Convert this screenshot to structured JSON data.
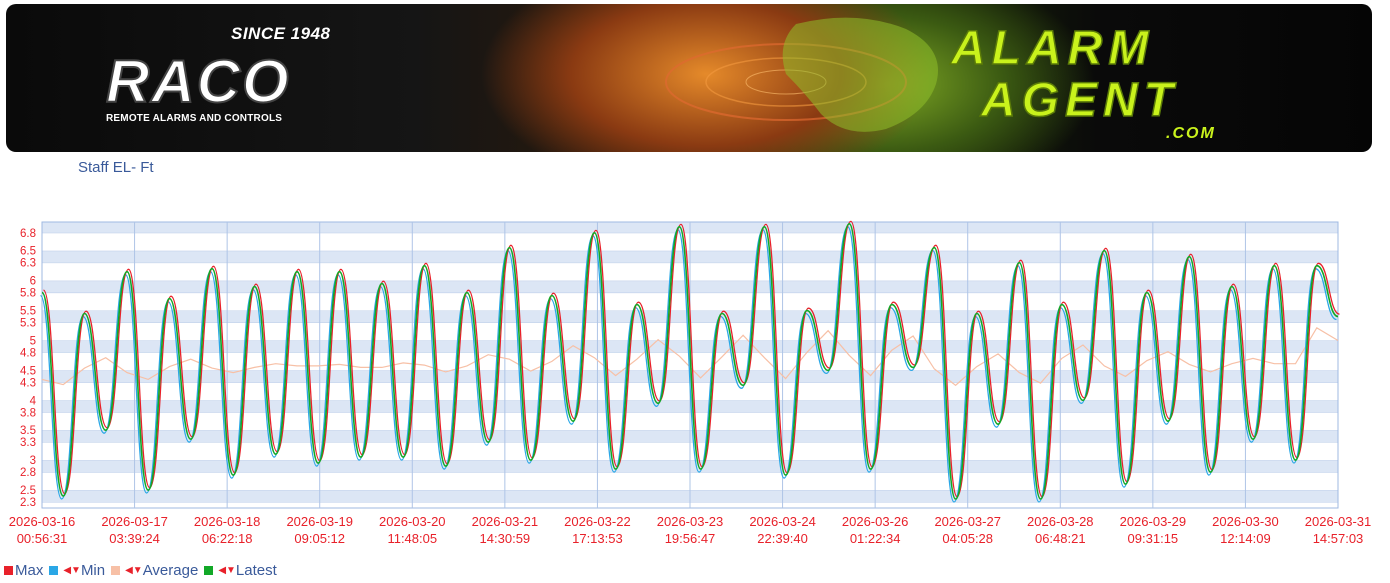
{
  "banner": {
    "since_text": "SINCE 1948",
    "brand_name": "RACO",
    "brand_tagline": "REMOTE ALARMS AND CONTROLS",
    "product_line1": "ALARM",
    "product_line2": "AGENT",
    "product_suffix": ".COM"
  },
  "subtitle": "Staff EL- Ft",
  "legend": {
    "items": [
      {
        "label": "Max",
        "color": "#e8212a",
        "arrows": false
      },
      {
        "label": "Min",
        "color": "#2aa7e6",
        "arrows": true
      },
      {
        "label": "Average",
        "color": "#f7c0a6",
        "arrows": true
      },
      {
        "label": "Latest",
        "color": "#12a827",
        "arrows": true
      }
    ]
  },
  "chart_data": {
    "type": "line",
    "title": "Staff EL- Ft",
    "grid": true,
    "legend_position": "bottom-left",
    "ylim": [
      2.2,
      6.98
    ],
    "y_ticks": [
      "2.3",
      "2.5",
      "2.8",
      "3",
      "3.3",
      "3.5",
      "3.8",
      "4",
      "4.3",
      "4.5",
      "4.8",
      "5",
      "5.3",
      "5.5",
      "5.8",
      "6",
      "6.3",
      "6.5",
      "6.8"
    ],
    "x_tick_labels": [
      [
        "2026-03-16",
        "00:56:31"
      ],
      [
        "2026-03-17",
        "03:39:24"
      ],
      [
        "2026-03-18",
        "06:22:18"
      ],
      [
        "2026-03-19",
        "09:05:12"
      ],
      [
        "2026-03-20",
        "11:48:05"
      ],
      [
        "2026-03-21",
        "14:30:59"
      ],
      [
        "2026-03-22",
        "17:13:53"
      ],
      [
        "2026-03-23",
        "19:56:47"
      ],
      [
        "2026-03-24",
        "22:39:40"
      ],
      [
        "2026-03-26",
        "01:22:34"
      ],
      [
        "2026-03-27",
        "04:05:28"
      ],
      [
        "2026-03-28",
        "06:48:21"
      ],
      [
        "2026-03-29",
        "09:31:15"
      ],
      [
        "2026-03-30",
        "12:14:09"
      ],
      [
        "2026-03-31",
        "14:57:03"
      ]
    ],
    "x_start": "2026-03-16 00:56:31",
    "x_end": "2026-03-31 14:57:03",
    "extrema_sequence": [
      5.8,
      2.4,
      5.45,
      3.5,
      6.15,
      2.5,
      5.7,
      3.35,
      6.2,
      2.75,
      5.9,
      3.1,
      6.15,
      2.95,
      6.15,
      3.05,
      5.95,
      3.05,
      6.25,
      2.9,
      5.8,
      3.3,
      6.55,
      3.0,
      5.75,
      3.65,
      6.8,
      2.85,
      5.6,
      3.95,
      6.9,
      2.85,
      5.45,
      4.25,
      6.9,
      2.75,
      5.5,
      4.5,
      6.95,
      2.85,
      5.6,
      4.55,
      6.55,
      2.35,
      5.45,
      3.6,
      6.3,
      2.35,
      5.6,
      4.0,
      6.5,
      2.6,
      5.8,
      3.65,
      6.4,
      2.8,
      5.9,
      3.35,
      6.25,
      3.0,
      6.25,
      5.4
    ],
    "series": [
      {
        "name": "Max",
        "color": "#e8212a",
        "values_from": "extrema_sequence",
        "offset": 0.04
      },
      {
        "name": "Min",
        "color": "#2aa7e6",
        "values_from": "extrema_sequence",
        "offset": -0.05
      },
      {
        "name": "Average",
        "color": "#f7c0a6",
        "values_from": "extrema_sequence"
      },
      {
        "name": "Latest",
        "color": "#12a827",
        "values_from": "extrema_sequence",
        "offset": 0
      }
    ]
  }
}
